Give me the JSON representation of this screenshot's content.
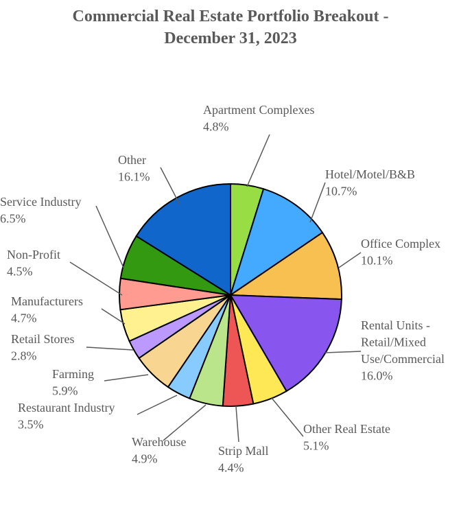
{
  "chart_data": {
    "type": "pie",
    "title_line1": "Commercial Real Estate Portfolio Breakout -",
    "title_line2": "December 31, 2023",
    "slices": [
      {
        "label": [
          "Apartment Complexes"
        ],
        "value": 4.8,
        "pct": "4.8%",
        "color": "#99dd44"
      },
      {
        "label": [
          "Hotel/Motel/B&B"
        ],
        "value": 10.7,
        "pct": "10.7%",
        "color": "#44aaff"
      },
      {
        "label": [
          "Office Complex"
        ],
        "value": 10.1,
        "pct": "10.1%",
        "color": "#f8c050"
      },
      {
        "label": [
          "Rental Units -",
          "Retail/Mixed",
          "Use/Commercial"
        ],
        "value": 16.0,
        "pct": "16.0%",
        "color": "#8855ee"
      },
      {
        "label": [
          "Other  Real Estate"
        ],
        "value": 5.1,
        "pct": "5.1%",
        "color": "#ffe855"
      },
      {
        "label": [
          "Strip Mall"
        ],
        "value": 4.4,
        "pct": "4.4%",
        "color": "#ee5555"
      },
      {
        "label": [
          "Warehouse"
        ],
        "value": 4.9,
        "pct": "4.9%",
        "color": "#bbe58a"
      },
      {
        "label": [
          "Restaurant Industry"
        ],
        "value": 3.5,
        "pct": "3.5%",
        "color": "#88ccff"
      },
      {
        "label": [
          "Farming"
        ],
        "value": 5.9,
        "pct": "5.9%",
        "color": "#f8d590"
      },
      {
        "label": [
          "Retail Stores"
        ],
        "value": 2.8,
        "pct": "2.8%",
        "color": "#bb99ff"
      },
      {
        "label": [
          "Manufacturers"
        ],
        "value": 4.7,
        "pct": "4.7%",
        "color": "#fff090"
      },
      {
        "label": [
          "Non-Profit"
        ],
        "value": 4.5,
        "pct": "4.5%",
        "color": "#ff9b90"
      },
      {
        "label": [
          "Service Industry"
        ],
        "value": 6.5,
        "pct": "6.5%",
        "color": "#339911"
      },
      {
        "label": [
          "Other"
        ],
        "value": 16.1,
        "pct": "16.1%",
        "color": "#1166cc"
      }
    ]
  }
}
